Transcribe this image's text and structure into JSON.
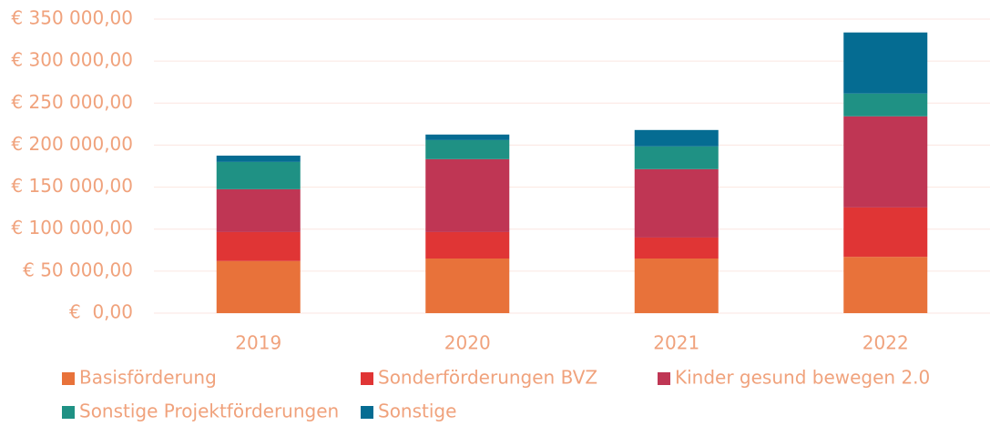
{
  "chart_data": {
    "type": "stacked_bar",
    "categories": [
      "2019",
      "2020",
      "2021",
      "2022"
    ],
    "series": [
      {
        "name": "Basisförderung",
        "color": "#e8723a",
        "values": [
          62000,
          65000,
          65000,
          67000
        ]
      },
      {
        "name": "Sonderförderungen BVZ",
        "color": "#e03535",
        "values": [
          34500,
          31500,
          25000,
          58800
        ]
      },
      {
        "name": "Kinder gesund bewegen 2.0",
        "color": "#bf3654",
        "values": [
          51000,
          86800,
          81400,
          108500
        ]
      },
      {
        "name": "Sonstige Projektförderungen",
        "color": "#1f9184",
        "values": [
          32500,
          22700,
          27100,
          27100
        ]
      },
      {
        "name": "Sonstige",
        "color": "#056c92",
        "values": [
          7500,
          6600,
          19500,
          72700
        ]
      }
    ],
    "ylim": [
      0,
      350000
    ],
    "yticks": [
      {
        "value": 0,
        "label": "€  0,00"
      },
      {
        "value": 50000,
        "label": "€ 50 000,00"
      },
      {
        "value": 100000,
        "label": "€ 100 000,00"
      },
      {
        "value": 150000,
        "label": "€ 150 000,00"
      },
      {
        "value": 200000,
        "label": "€ 200 000,00"
      },
      {
        "value": 250000,
        "label": "€ 250 000,00"
      },
      {
        "value": 300000,
        "label": "€ 300 000,00"
      },
      {
        "value": 350000,
        "label": "€ 350 000,00"
      }
    ],
    "grid": true
  }
}
